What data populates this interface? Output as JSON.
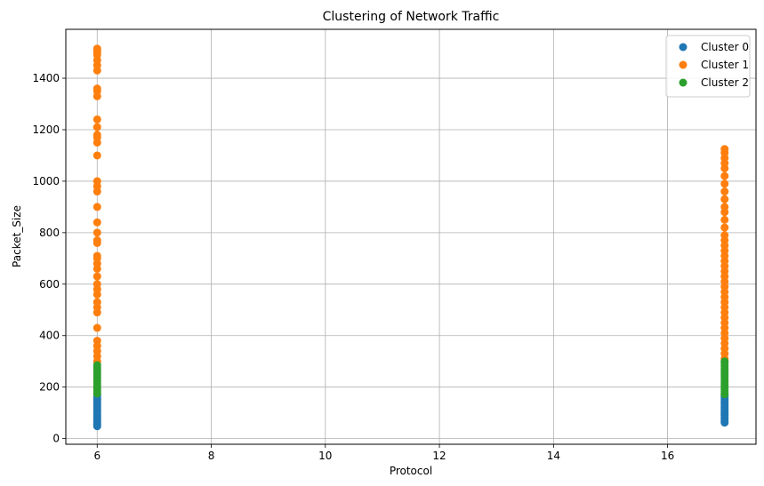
{
  "chart_data": {
    "type": "scatter",
    "title": "Clustering of Network Traffic",
    "xlabel": "Protocol",
    "ylabel": "Packet_Size",
    "xlim": [
      5.45,
      17.55
    ],
    "ylim": [
      -22,
      1590
    ],
    "xticks": [
      6,
      8,
      10,
      12,
      14,
      16
    ],
    "yticks": [
      0,
      200,
      400,
      600,
      800,
      1000,
      1200,
      1400
    ],
    "grid": true,
    "legend_position": "top-right",
    "series": [
      {
        "name": "Cluster 0",
        "color": "#1f77b4",
        "points": [
          [
            6,
            48
          ],
          [
            6,
            55
          ],
          [
            6,
            62
          ],
          [
            6,
            70
          ],
          [
            6,
            78
          ],
          [
            6,
            85
          ],
          [
            6,
            92
          ],
          [
            6,
            100
          ],
          [
            6,
            108
          ],
          [
            6,
            115
          ],
          [
            6,
            123
          ],
          [
            6,
            130
          ],
          [
            6,
            138
          ],
          [
            6,
            145
          ],
          [
            6,
            152
          ],
          [
            6,
            160
          ],
          [
            6,
            168
          ],
          [
            6,
            175
          ],
          [
            17,
            62
          ],
          [
            17,
            68
          ],
          [
            17,
            75
          ],
          [
            17,
            82
          ],
          [
            17,
            90
          ],
          [
            17,
            97
          ],
          [
            17,
            105
          ],
          [
            17,
            112
          ],
          [
            17,
            120
          ],
          [
            17,
            127
          ],
          [
            17,
            135
          ],
          [
            17,
            142
          ],
          [
            17,
            150
          ],
          [
            17,
            158
          ],
          [
            17,
            165
          ],
          [
            17,
            172
          ]
        ]
      },
      {
        "name": "Cluster 1",
        "color": "#ff7f0e",
        "points": [
          [
            6,
            300
          ],
          [
            6,
            320
          ],
          [
            6,
            340
          ],
          [
            6,
            360
          ],
          [
            6,
            380
          ],
          [
            6,
            430
          ],
          [
            6,
            490
          ],
          [
            6,
            510
          ],
          [
            6,
            530
          ],
          [
            6,
            560
          ],
          [
            6,
            580
          ],
          [
            6,
            600
          ],
          [
            6,
            630
          ],
          [
            6,
            660
          ],
          [
            6,
            680
          ],
          [
            6,
            700
          ],
          [
            6,
            710
          ],
          [
            6,
            760
          ],
          [
            6,
            770
          ],
          [
            6,
            800
          ],
          [
            6,
            840
          ],
          [
            6,
            900
          ],
          [
            6,
            960
          ],
          [
            6,
            980
          ],
          [
            6,
            1000
          ],
          [
            6,
            1100
          ],
          [
            6,
            1150
          ],
          [
            6,
            1170
          ],
          [
            6,
            1180
          ],
          [
            6,
            1210
          ],
          [
            6,
            1240
          ],
          [
            6,
            1330
          ],
          [
            6,
            1350
          ],
          [
            6,
            1360
          ],
          [
            6,
            1430
          ],
          [
            6,
            1450
          ],
          [
            6,
            1470
          ],
          [
            6,
            1490
          ],
          [
            6,
            1500
          ],
          [
            6,
            1510
          ],
          [
            6,
            1515
          ],
          [
            17,
            310
          ],
          [
            17,
            330
          ],
          [
            17,
            350
          ],
          [
            17,
            370
          ],
          [
            17,
            390
          ],
          [
            17,
            410
          ],
          [
            17,
            430
          ],
          [
            17,
            450
          ],
          [
            17,
            470
          ],
          [
            17,
            490
          ],
          [
            17,
            510
          ],
          [
            17,
            530
          ],
          [
            17,
            550
          ],
          [
            17,
            570
          ],
          [
            17,
            590
          ],
          [
            17,
            610
          ],
          [
            17,
            630
          ],
          [
            17,
            650
          ],
          [
            17,
            670
          ],
          [
            17,
            690
          ],
          [
            17,
            710
          ],
          [
            17,
            730
          ],
          [
            17,
            750
          ],
          [
            17,
            770
          ],
          [
            17,
            790
          ],
          [
            17,
            820
          ],
          [
            17,
            850
          ],
          [
            17,
            880
          ],
          [
            17,
            900
          ],
          [
            17,
            930
          ],
          [
            17,
            960
          ],
          [
            17,
            990
          ],
          [
            17,
            1020
          ],
          [
            17,
            1050
          ],
          [
            17,
            1070
          ],
          [
            17,
            1090
          ],
          [
            17,
            1110
          ],
          [
            17,
            1125
          ]
        ]
      },
      {
        "name": "Cluster 2",
        "color": "#2ca02c",
        "points": [
          [
            6,
            175
          ],
          [
            6,
            185
          ],
          [
            6,
            195
          ],
          [
            6,
            205
          ],
          [
            6,
            215
          ],
          [
            6,
            225
          ],
          [
            6,
            235
          ],
          [
            6,
            245
          ],
          [
            6,
            255
          ],
          [
            6,
            265
          ],
          [
            6,
            275
          ],
          [
            6,
            285
          ],
          [
            17,
            172
          ],
          [
            17,
            182
          ],
          [
            17,
            192
          ],
          [
            17,
            202
          ],
          [
            17,
            212
          ],
          [
            17,
            222
          ],
          [
            17,
            232
          ],
          [
            17,
            242
          ],
          [
            17,
            252
          ],
          [
            17,
            262
          ],
          [
            17,
            272
          ],
          [
            17,
            282
          ],
          [
            17,
            292
          ],
          [
            17,
            300
          ]
        ]
      }
    ]
  }
}
